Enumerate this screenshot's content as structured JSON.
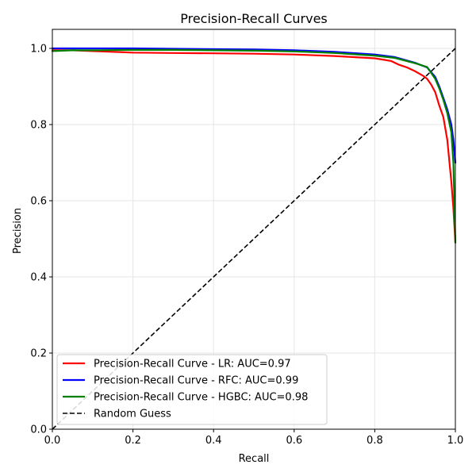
{
  "chart_data": {
    "type": "line",
    "title": "Precision-Recall Curves",
    "xlabel": "Recall",
    "ylabel": "Precision",
    "xlim": [
      0.0,
      1.0
    ],
    "ylim": [
      0.0,
      1.05
    ],
    "grid": true,
    "legend_position": "bottom-left",
    "xticks": [
      0.0,
      0.2,
      0.4,
      0.6,
      0.8,
      1.0
    ],
    "yticks": [
      0.0,
      0.2,
      0.4,
      0.6,
      0.8,
      1.0
    ],
    "xtick_labels": [
      "0.0",
      "0.2",
      "0.4",
      "0.6",
      "0.8",
      "1.0"
    ],
    "ytick_labels": [
      "0.0",
      "0.2",
      "0.4",
      "0.6",
      "0.8",
      "1.0"
    ],
    "series": [
      {
        "name": "Precision-Recall Curve - LR: AUC=0.97",
        "color": "#ff0000",
        "style": "solid",
        "points": [
          [
            0.0,
            0.995
          ],
          [
            0.05,
            0.995
          ],
          [
            0.1,
            0.993
          ],
          [
            0.2,
            0.989
          ],
          [
            0.3,
            0.988
          ],
          [
            0.4,
            0.987
          ],
          [
            0.5,
            0.986
          ],
          [
            0.6,
            0.984
          ],
          [
            0.7,
            0.98
          ],
          [
            0.8,
            0.974
          ],
          [
            0.84,
            0.967
          ],
          [
            0.86,
            0.957
          ],
          [
            0.88,
            0.95
          ],
          [
            0.9,
            0.94
          ],
          [
            0.92,
            0.928
          ],
          [
            0.93,
            0.92
          ],
          [
            0.94,
            0.905
          ],
          [
            0.95,
            0.885
          ],
          [
            0.96,
            0.85
          ],
          [
            0.97,
            0.82
          ],
          [
            0.98,
            0.76
          ],
          [
            0.99,
            0.65
          ],
          [
            0.995,
            0.58
          ],
          [
            1.0,
            0.49
          ]
        ]
      },
      {
        "name": "Precision-Recall Curve - RFC: AUC=0.99",
        "color": "#0000ff",
        "style": "solid",
        "points": [
          [
            0.0,
            1.0
          ],
          [
            0.1,
            1.0
          ],
          [
            0.2,
            1.0
          ],
          [
            0.3,
            0.999
          ],
          [
            0.4,
            0.998
          ],
          [
            0.5,
            0.997
          ],
          [
            0.6,
            0.995
          ],
          [
            0.7,
            0.991
          ],
          [
            0.8,
            0.984
          ],
          [
            0.85,
            0.977
          ],
          [
            0.9,
            0.962
          ],
          [
            0.93,
            0.95
          ],
          [
            0.95,
            0.925
          ],
          [
            0.96,
            0.9
          ],
          [
            0.97,
            0.87
          ],
          [
            0.98,
            0.84
          ],
          [
            0.99,
            0.8
          ],
          [
            0.995,
            0.76
          ],
          [
            1.0,
            0.7
          ]
        ]
      },
      {
        "name": "Precision-Recall Curve - HGBC: AUC=0.98",
        "color": "#008000",
        "style": "solid",
        "points": [
          [
            0.0,
            0.993
          ],
          [
            0.05,
            0.995
          ],
          [
            0.1,
            0.995
          ],
          [
            0.2,
            0.996
          ],
          [
            0.3,
            0.996
          ],
          [
            0.4,
            0.995
          ],
          [
            0.5,
            0.994
          ],
          [
            0.6,
            0.992
          ],
          [
            0.7,
            0.988
          ],
          [
            0.8,
            0.981
          ],
          [
            0.85,
            0.975
          ],
          [
            0.9,
            0.961
          ],
          [
            0.93,
            0.951
          ],
          [
            0.95,
            0.92
          ],
          [
            0.96,
            0.895
          ],
          [
            0.97,
            0.865
          ],
          [
            0.98,
            0.83
          ],
          [
            0.99,
            0.78
          ],
          [
            0.995,
            0.7
          ],
          [
            1.0,
            0.49
          ]
        ]
      },
      {
        "name": "Random Guess",
        "color": "#000000",
        "style": "dashed",
        "points": [
          [
            0.0,
            0.0
          ],
          [
            1.0,
            1.0
          ]
        ]
      }
    ]
  }
}
